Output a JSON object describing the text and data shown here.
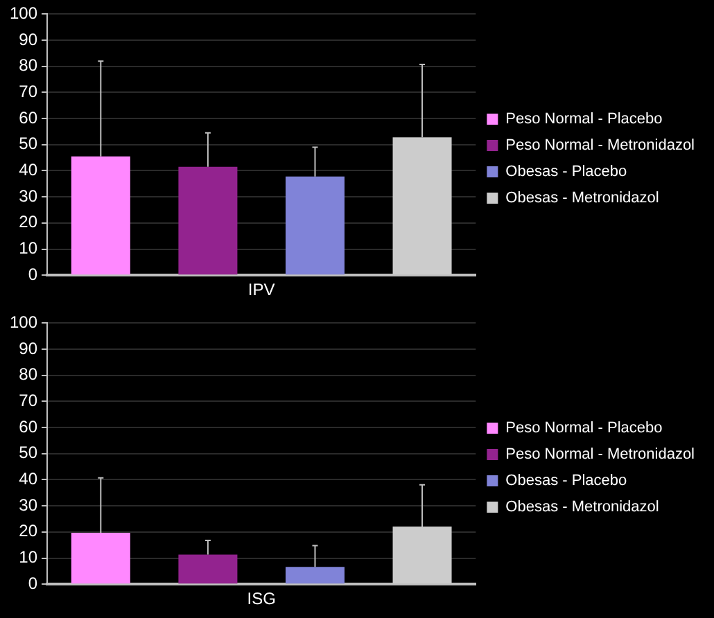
{
  "chart_data": [
    {
      "type": "bar",
      "categories": [
        null
      ],
      "xlabel": "IPV",
      "ylim": [
        0,
        100
      ],
      "yticks": [
        0,
        10,
        20,
        30,
        40,
        50,
        60,
        70,
        80,
        90,
        100
      ],
      "grid": "y",
      "legend": "right",
      "tick_labels": "y",
      "series": [
        {
          "name": "Peso Normal - Placebo",
          "color": "#ff88ff",
          "values": [
            45.5
          ],
          "errors": [
            [
              45.5,
              82
            ]
          ]
        },
        {
          "name": "Peso Normal - Metronidazol",
          "color": "#93238f",
          "values": [
            41.5
          ],
          "errors": [
            [
              41.5,
              54.5
            ]
          ]
        },
        {
          "name": "Obesas - Placebo",
          "color": "#8083d8",
          "values": [
            37.8
          ],
          "errors": [
            [
              37.8,
              49
            ]
          ]
        },
        {
          "name": "Obesas - Metronidazol",
          "color": "#cccccc",
          "values": [
            52.8
          ],
          "errors": [
            [
              52.8,
              80.7
            ]
          ]
        }
      ]
    },
    {
      "type": "bar",
      "categories": [
        null
      ],
      "xlabel": "ISG",
      "ylim": [
        0,
        100
      ],
      "yticks": [
        0,
        10,
        20,
        30,
        40,
        50,
        60,
        70,
        80,
        90,
        100
      ],
      "grid": "y",
      "legend": "right",
      "tick_labels": "y",
      "series": [
        {
          "name": "Peso Normal - Placebo",
          "color": "#ff88ff",
          "values": [
            19.7
          ],
          "errors": [
            [
              19.7,
              40.7
            ]
          ]
        },
        {
          "name": "Peso Normal - Metronidazol",
          "color": "#93238f",
          "values": [
            11.3
          ],
          "errors": [
            [
              11.3,
              16.8
            ]
          ]
        },
        {
          "name": "Obesas - Placebo",
          "color": "#8083d8",
          "values": [
            6.6
          ],
          "errors": [
            [
              6.6,
              14.8
            ]
          ]
        },
        {
          "name": "Obesas - Metronidazol",
          "color": "#cccccc",
          "values": [
            22.1
          ],
          "errors": [
            [
              22.1,
              38.1
            ]
          ]
        }
      ]
    }
  ]
}
